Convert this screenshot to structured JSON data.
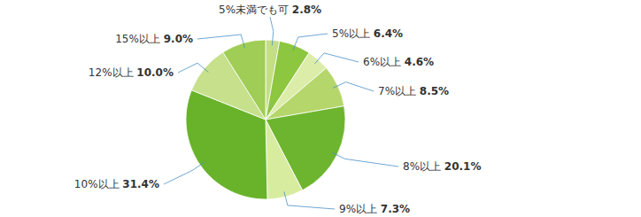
{
  "chart_data": {
    "type": "pie",
    "categories": [
      "5%未満でも可",
      "5%以上",
      "6%以上",
      "7%以上",
      "8%以上",
      "9%以上",
      "10%以上",
      "12%以上",
      "15%以上"
    ],
    "values": [
      2.8,
      6.4,
      4.6,
      8.5,
      20.1,
      7.3,
      31.4,
      10.0,
      9.0
    ],
    "value_labels": [
      "2.8%",
      "6.4%",
      "4.6%",
      "8.5%",
      "20.1%",
      "7.3%",
      "31.4%",
      "10.0%",
      "9.0%"
    ],
    "colors": [
      "#c4de86",
      "#8dc63f",
      "#dcedaa",
      "#b5d66a",
      "#6db52e",
      "#d8eca0",
      "#69b32a",
      "#c6e08c",
      "#9fcd55"
    ],
    "data_labels": true
  }
}
